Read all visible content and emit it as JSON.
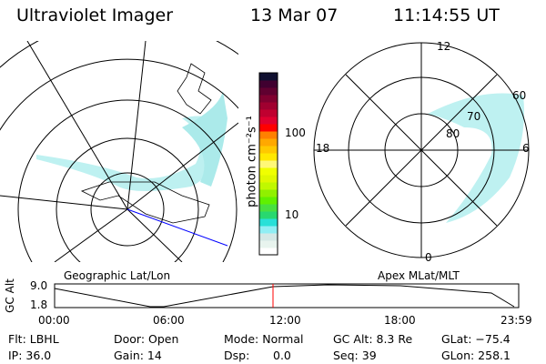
{
  "header": {
    "instrument": "Ultraviolet Imager",
    "date": "13 Mar 07",
    "time": "11:14:55 UT"
  },
  "colorbar": {
    "label": "photon cm⁻²s⁻¹",
    "ticks": [
      "100",
      "10"
    ],
    "colors": [
      "#ffffff",
      "#e8f4ee",
      "#d4e8e6",
      "#90eef4",
      "#28e0d8",
      "#28d870",
      "#48e040",
      "#60f000",
      "#90f000",
      "#c0f800",
      "#e0f800",
      "#f0ff00",
      "#fff878",
      "#ffe800",
      "#ffc800",
      "#ffa800",
      "#ff8000",
      "#ff0000",
      "#e00030",
      "#c00030",
      "#a00030",
      "#800030",
      "#600030",
      "#400030",
      "#101030"
    ]
  },
  "left_map": {
    "label": "Geographic Lat/Lon"
  },
  "right_map": {
    "label": "Apex MLat/MLT",
    "mlt_labels": [
      "12",
      "18",
      "6",
      "0"
    ],
    "lat_labels": [
      "60",
      "70",
      "80"
    ]
  },
  "altitude_plot": {
    "ylabel": "GC Alt",
    "yticks": [
      "9.0",
      "1.8"
    ],
    "xticks": [
      "00:00",
      "06:00",
      "12:00",
      "18:00",
      "23:59"
    ],
    "cursor_color": "#ff0000"
  },
  "info": {
    "filter": "Flt: LBHL",
    "door": "Door: Open",
    "mode": "Mode: Normal",
    "gc_alt": "GC Alt: 8.3 Re",
    "glat": "GLat: −75.4",
    "ip": "IP: 36.0",
    "gain": "Gain: 14",
    "dsp_label": "Dsp:",
    "dsp_value": "0.0",
    "seq": "Seq: 39",
    "glon": "GLon: 258.1"
  }
}
